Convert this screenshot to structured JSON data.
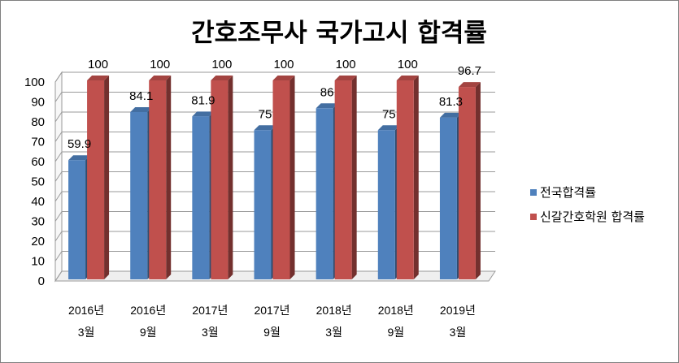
{
  "chart_data": {
    "type": "bar",
    "title": "간호조무사 국가고시 합격률",
    "categories": [
      [
        "2016년",
        "3월"
      ],
      [
        "2016년",
        "9월"
      ],
      [
        "2017년",
        "3월"
      ],
      [
        "2017년",
        "9월"
      ],
      [
        "2018년",
        "3월"
      ],
      [
        "2018년",
        "9월"
      ],
      [
        "2019년",
        "3월"
      ]
    ],
    "series": [
      {
        "name": "전국합격률",
        "values": [
          59.9,
          84.1,
          81.9,
          75,
          86,
          75,
          81.3
        ],
        "labels": [
          "59.9",
          "84.1",
          "81.9",
          "75",
          "86",
          "75",
          "81.3"
        ],
        "color": "#4f81bd"
      },
      {
        "name": "신갈간호학원 합격률",
        "values": [
          100,
          100,
          100,
          100,
          100,
          100,
          96.7
        ],
        "labels": [
          "100",
          "100",
          "100",
          "100",
          "100",
          "100",
          "96.7"
        ],
        "color": "#c0504d"
      }
    ],
    "yticks": [
      "0",
      "10",
      "20",
      "30",
      "40",
      "50",
      "60",
      "70",
      "80",
      "90",
      "100"
    ],
    "ylim": [
      0,
      100
    ],
    "grid": true,
    "legend": "right",
    "style": "3d-clustered-column"
  }
}
